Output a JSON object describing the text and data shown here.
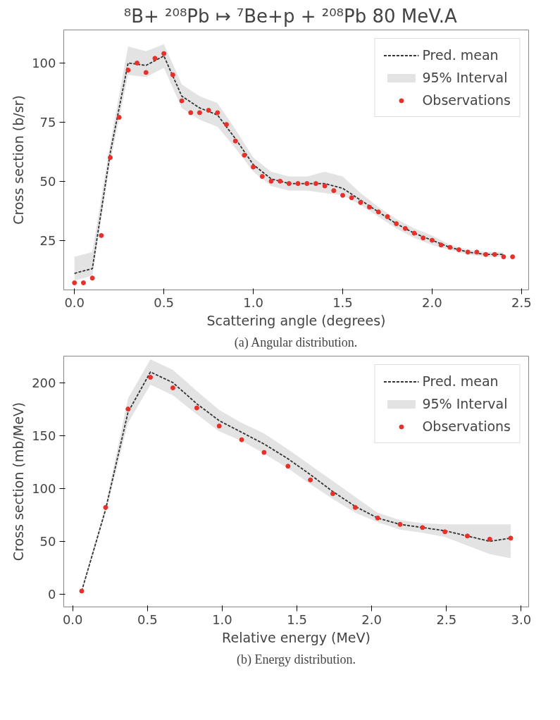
{
  "chart_data": [
    {
      "type": "line",
      "title": "⁸B+ ²⁰⁸Pb ↦ ⁷Be+p +  ²⁰⁸Pb  80 MeV.A",
      "xlabel": "Scattering angle (degrees)",
      "ylabel": "Cross section (b/sr)",
      "annotations": [
        "(a) Angular distribution."
      ],
      "xlim": [
        -0.06,
        2.54
      ],
      "ylim": [
        4,
        114
      ],
      "xticks": [
        {
          "value": 0,
          "label": "0.0"
        },
        0.5,
        {
          "value": 1,
          "label": "1.0"
        },
        1.5,
        {
          "value": 2,
          "label": "2.0"
        },
        2.5
      ],
      "yticks": [
        25,
        50,
        75,
        100
      ],
      "grid": false,
      "legend": "top right",
      "series": [
        {
          "name": "Pred. mean",
          "line_style": "dashed",
          "color": "#333333",
          "x": [
            0.0,
            0.1,
            0.2,
            0.3,
            0.4,
            0.5,
            0.6,
            0.7,
            0.8,
            0.9,
            1.0,
            1.1,
            1.2,
            1.3,
            1.4,
            1.5,
            1.6,
            1.7,
            1.8,
            1.9,
            2.0,
            2.1,
            2.2,
            2.3,
            2.4
          ],
          "values": [
            11,
            13,
            62,
            100,
            99,
            103,
            86,
            81,
            78,
            68,
            57,
            51,
            49,
            49,
            49,
            47,
            42,
            37,
            32,
            28,
            25,
            22,
            20,
            19,
            19
          ],
          "lower": [
            8,
            10,
            58,
            95,
            94,
            98,
            81,
            76,
            73,
            64,
            54,
            48,
            46,
            46,
            45,
            44,
            40,
            35,
            30,
            26,
            23,
            21,
            19,
            18,
            18
          ],
          "upper": [
            18,
            20,
            66,
            107,
            105,
            108,
            91,
            86,
            83,
            72,
            60,
            54,
            52,
            52,
            54,
            52,
            45,
            39,
            34,
            30,
            27,
            23,
            21,
            20,
            20
          ]
        },
        {
          "name": "95% Interval",
          "type": "area",
          "color": "#e3e3e3"
        },
        {
          "name": "Observations",
          "type": "scatter",
          "marker": "circle",
          "color": "#e8302a",
          "x": [
            0.0,
            0.05,
            0.1,
            0.15,
            0.2,
            0.25,
            0.3,
            0.35,
            0.4,
            0.45,
            0.5,
            0.55,
            0.6,
            0.65,
            0.7,
            0.75,
            0.8,
            0.85,
            0.9,
            0.95,
            1.0,
            1.05,
            1.1,
            1.15,
            1.2,
            1.25,
            1.3,
            1.35,
            1.4,
            1.45,
            1.5,
            1.55,
            1.6,
            1.65,
            1.7,
            1.75,
            1.8,
            1.85,
            1.9,
            1.95,
            2.0,
            2.05,
            2.1,
            2.15,
            2.2,
            2.25,
            2.3,
            2.35,
            2.4,
            2.45
          ],
          "values": [
            7,
            7,
            9,
            27,
            60,
            77,
            97,
            100,
            96,
            102,
            104,
            95,
            84,
            79,
            79,
            80,
            79,
            74,
            67,
            61,
            56,
            52,
            50,
            50,
            49,
            49,
            49,
            49,
            48,
            46,
            44,
            43,
            41,
            39,
            37,
            35,
            32,
            30,
            28,
            26,
            25,
            23,
            22,
            21,
            20,
            20,
            19,
            19,
            18,
            18
          ]
        }
      ]
    },
    {
      "type": "line",
      "xlabel": "Relative energy (MeV)",
      "ylabel": "Cross section (mb/MeV)",
      "annotations": [
        "(b) Energy distribution."
      ],
      "xlim": [
        -0.06,
        3.05
      ],
      "ylim": [
        -12,
        225
      ],
      "xticks": [
        {
          "value": 0,
          "label": "0.0"
        },
        0.5,
        {
          "value": 1,
          "label": "1.0"
        },
        1.5,
        {
          "value": 2,
          "label": "2.0"
        },
        2.5,
        {
          "value": 3,
          "label": "3.0"
        }
      ],
      "yticks": [
        0,
        50,
        100,
        150,
        200
      ],
      "grid": false,
      "legend": "top right",
      "series": [
        {
          "name": "Pred. mean",
          "line_style": "dashed",
          "color": "#333333",
          "x": [
            0.06,
            0.22,
            0.37,
            0.52,
            0.67,
            0.83,
            0.98,
            1.13,
            1.28,
            1.44,
            1.59,
            1.74,
            1.89,
            2.04,
            2.19,
            2.34,
            2.49,
            2.64,
            2.79,
            2.93
          ],
          "values": [
            3,
            80,
            172,
            210,
            200,
            180,
            164,
            153,
            142,
            128,
            113,
            97,
            83,
            72,
            66,
            63,
            60,
            55,
            50,
            53
          ],
          "lower": [
            2,
            77,
            162,
            198,
            188,
            170,
            154,
            145,
            133,
            119,
            104,
            90,
            77,
            68,
            61,
            58,
            54,
            46,
            38,
            34
          ],
          "upper": [
            4,
            84,
            185,
            222,
            212,
            192,
            174,
            162,
            152,
            137,
            122,
            107,
            92,
            77,
            70,
            67,
            66,
            66,
            66,
            66
          ]
        },
        {
          "name": "95% Interval",
          "type": "area",
          "color": "#e3e3e3"
        },
        {
          "name": "Observations",
          "type": "scatter",
          "marker": "circle",
          "color": "#e8302a",
          "x": [
            0.06,
            0.22,
            0.37,
            0.52,
            0.67,
            0.83,
            0.98,
            1.13,
            1.28,
            1.44,
            1.59,
            1.74,
            1.89,
            2.04,
            2.19,
            2.34,
            2.49,
            2.64,
            2.79,
            2.93
          ],
          "values": [
            3,
            82,
            175,
            205,
            195,
            176,
            159,
            146,
            134,
            121,
            108,
            95,
            82,
            72,
            66,
            63,
            59,
            55,
            52,
            53
          ]
        }
      ]
    }
  ]
}
